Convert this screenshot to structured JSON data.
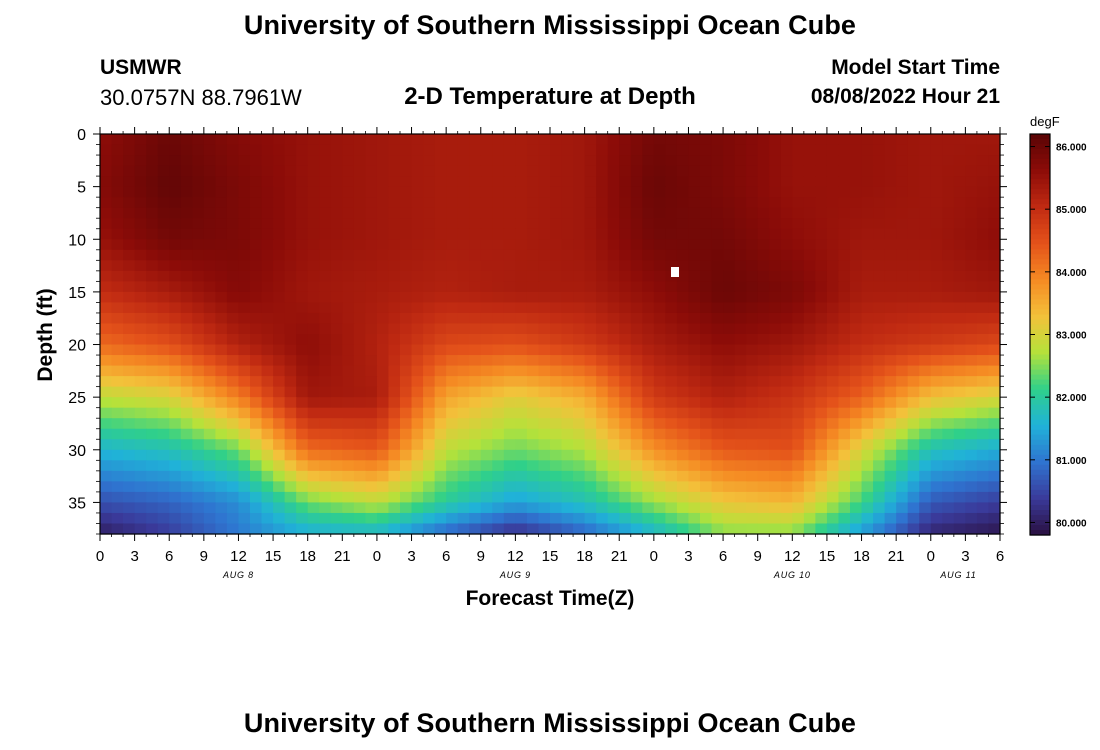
{
  "header": {
    "title": "University of Southern Mississippi Ocean Cube",
    "station_name": "USMWR",
    "station_coords": "30.0757N  88.7961W",
    "chart_title": "2-D Temperature at Depth",
    "model_start_label": "Model Start Time",
    "model_start_value": "08/08/2022 Hour 21"
  },
  "footer": {
    "title": "University of Southern Mississippi Ocean Cube"
  },
  "chart_data": {
    "type": "heatmap",
    "title": "2-D Temperature at Depth",
    "xlabel": "Forecast Time(Z)",
    "ylabel": "Depth (ft)",
    "units": "degF",
    "x_tick_labels": [
      "0",
      "3",
      "6",
      "9",
      "12",
      "15",
      "18",
      "21",
      "0",
      "3",
      "6",
      "9",
      "12",
      "15",
      "18",
      "21",
      "0",
      "3",
      "6",
      "9",
      "12",
      "15",
      "18",
      "21",
      "0",
      "3",
      "6"
    ],
    "day_labels": [
      {
        "label": "AUG 8",
        "hour_index": 4
      },
      {
        "label": "AUG 9",
        "hour_index": 12
      },
      {
        "label": "AUG 10",
        "hour_index": 20
      },
      {
        "label": "AUG 11",
        "hour_index": 24.8
      }
    ],
    "xlim_hours": [
      0,
      78
    ],
    "ylim_ft": [
      38,
      0
    ],
    "y_ticks": [
      0,
      5,
      10,
      15,
      20,
      25,
      30,
      35
    ],
    "colorbar": {
      "min": 79.8,
      "max": 86.2,
      "ticks": [
        80,
        81,
        82,
        83,
        84,
        85,
        86
      ],
      "tick_labels": [
        "80.000",
        "81.000",
        "82.000",
        "83.000",
        "84.000",
        "85.000",
        "86.000"
      ],
      "colors": [
        "#2a0f40",
        "#3a3a9a",
        "#2f74d0",
        "#20b2d8",
        "#2fd08a",
        "#b5e23a",
        "#f3c13a",
        "#f58a23",
        "#e4521a",
        "#c02a12",
        "#8c0c08",
        "#5a0505"
      ]
    },
    "depth_profile_ft": [
      0,
      5,
      10,
      15,
      20,
      25,
      30,
      35,
      38
    ],
    "time_hours": [
      0,
      6,
      12,
      18,
      24,
      30,
      36,
      42,
      48,
      54,
      60,
      66,
      72,
      78
    ],
    "temperature_degF": [
      [
        85.6,
        86.0,
        85.7,
        85.5,
        85.4,
        85.3,
        85.3,
        85.4,
        85.9,
        85.8,
        85.5,
        85.5,
        85.4,
        85.4
      ],
      [
        85.7,
        86.1,
        85.8,
        85.5,
        85.4,
        85.3,
        85.3,
        85.4,
        86.0,
        85.8,
        85.5,
        85.5,
        85.4,
        85.5
      ],
      [
        85.5,
        85.9,
        85.8,
        85.5,
        85.4,
        85.3,
        85.3,
        85.4,
        85.9,
        85.9,
        85.6,
        85.4,
        85.4,
        85.6
      ],
      [
        85.0,
        85.3,
        85.7,
        85.4,
        85.3,
        85.2,
        85.3,
        85.3,
        85.6,
        86.0,
        85.8,
        85.3,
        85.3,
        85.4
      ],
      [
        84.2,
        84.5,
        85.2,
        85.6,
        85.2,
        84.6,
        84.5,
        84.8,
        85.3,
        85.6,
        85.4,
        85.0,
        84.8,
        84.6
      ],
      [
        82.8,
        83.0,
        84.0,
        85.4,
        85.3,
        83.6,
        83.1,
        83.5,
        84.8,
        85.2,
        84.9,
        84.3,
        83.3,
        83.0
      ],
      [
        81.6,
        81.8,
        82.4,
        84.2,
        84.4,
        82.8,
        82.4,
        82.7,
        83.8,
        84.4,
        84.5,
        83.0,
        81.8,
        81.5
      ],
      [
        80.6,
        80.8,
        81.2,
        82.4,
        82.8,
        82.0,
        81.4,
        81.8,
        82.6,
        83.2,
        83.4,
        82.2,
        80.7,
        80.4
      ],
      [
        80.0,
        80.4,
        81.0,
        81.5,
        81.6,
        80.8,
        80.2,
        80.8,
        81.6,
        82.5,
        82.5,
        81.3,
        80.1,
        79.9
      ]
    ]
  }
}
